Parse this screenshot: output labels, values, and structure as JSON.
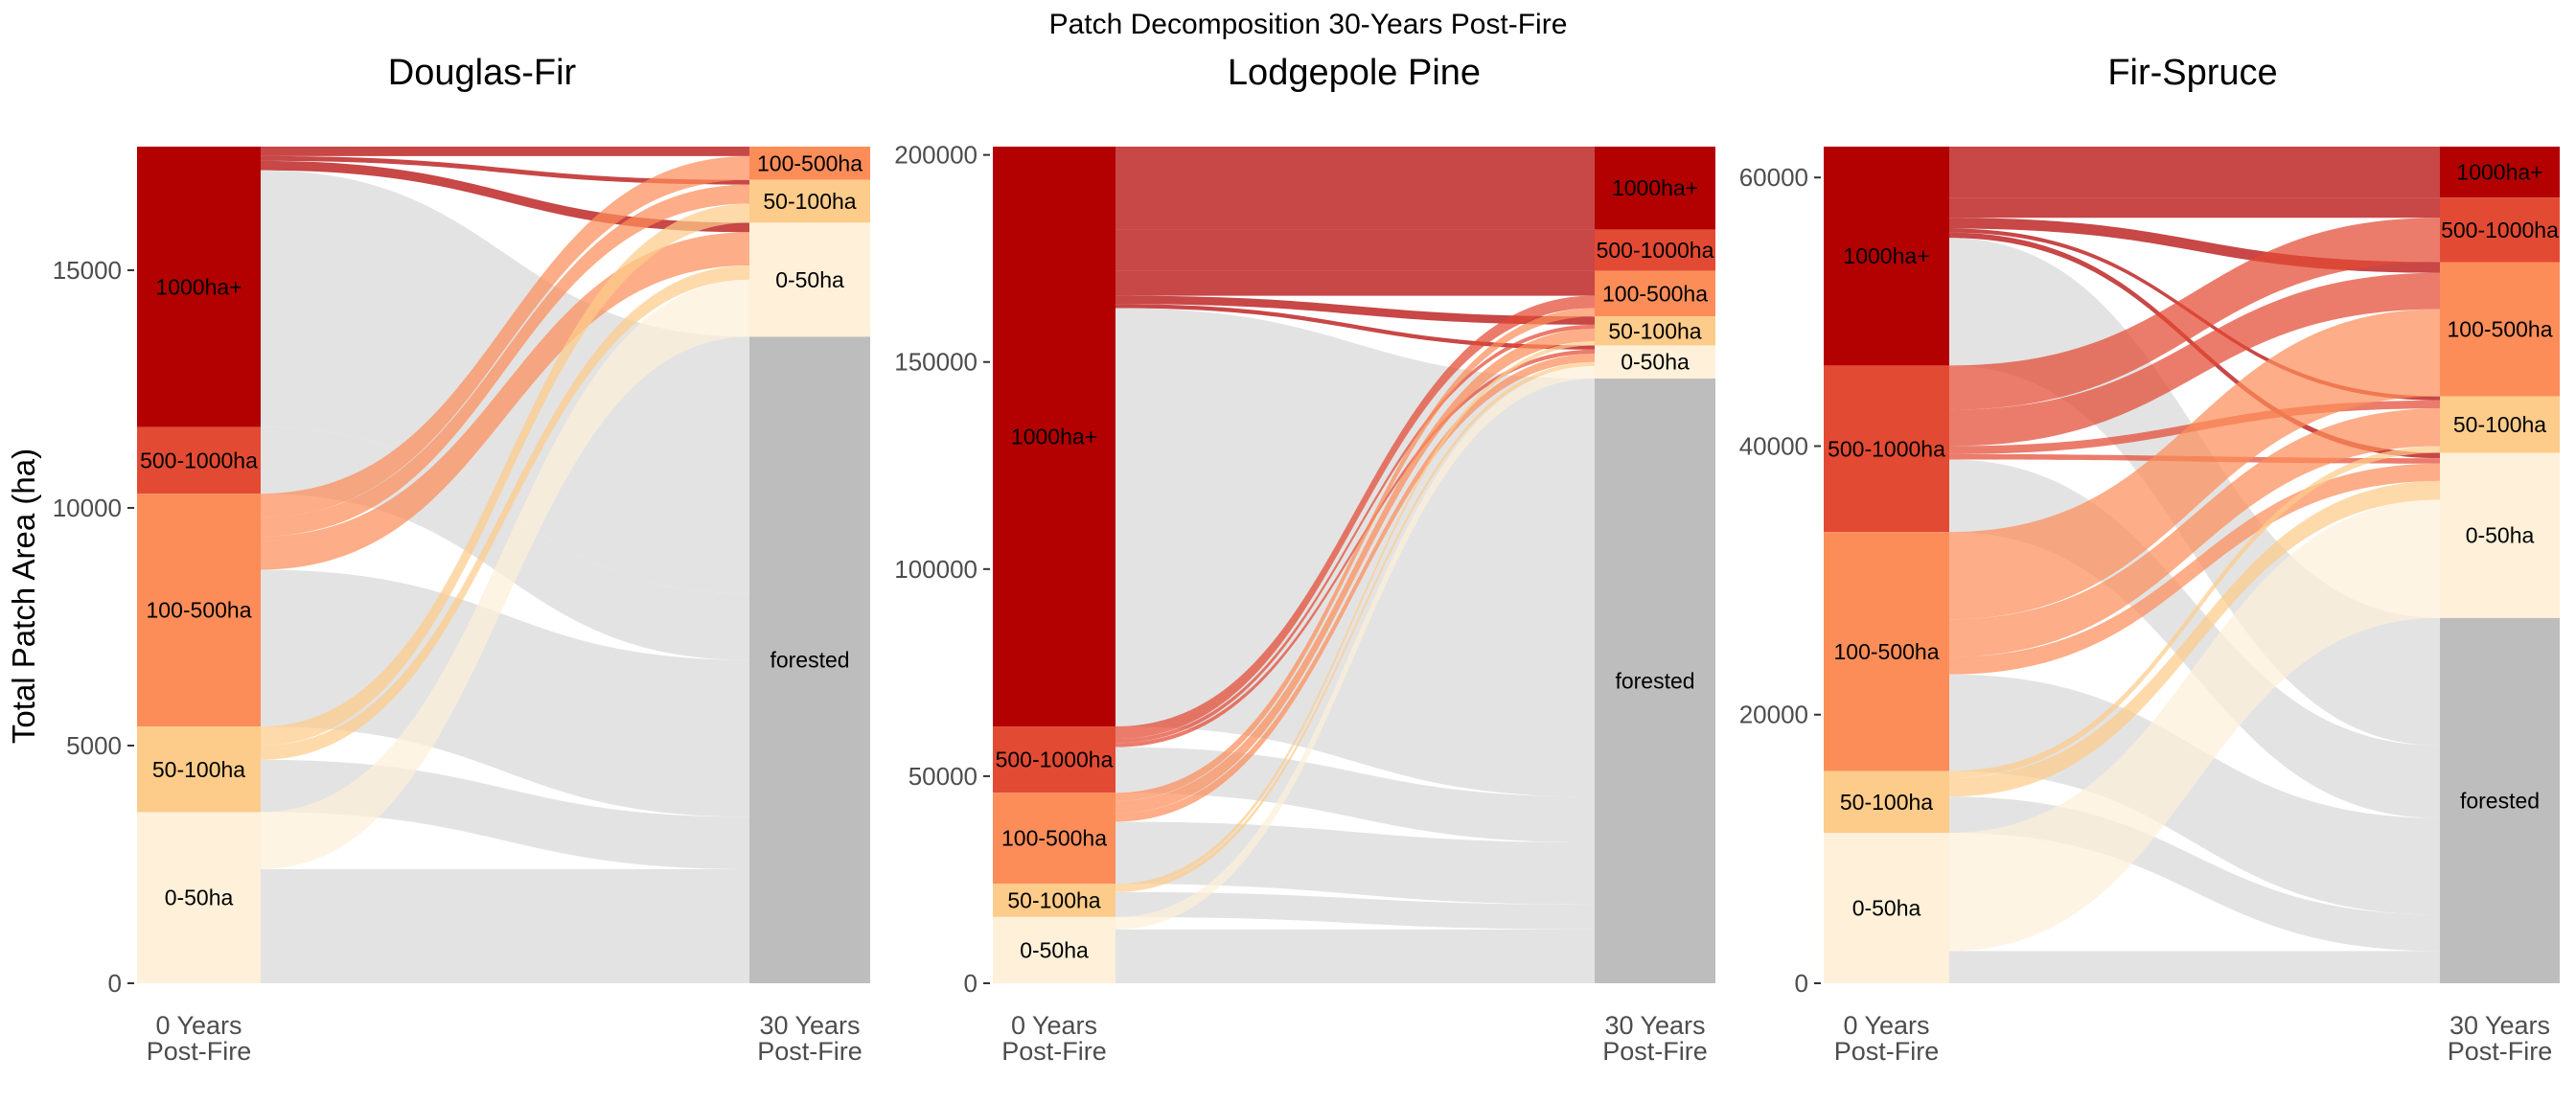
{
  "suptitle": "Patch Decomposition 30-Years Post-Fire",
  "ylabel": "Total Patch Area (ha)",
  "colors": {
    "1000ha+": "#b30000",
    "500-1000ha": "#e34a33",
    "100-500ha": "#fc8d59",
    "50-100ha": "#fdcc8a",
    "0-50ha": "#fef0d9",
    "forested": "#bdbdbd",
    "flow_to_forested": "#e3e3e3"
  },
  "chart_data": [
    {
      "type": "sankey",
      "title": "Douglas-Fir",
      "ylim": [
        0,
        17600
      ],
      "yticks": [
        0,
        5000,
        10000,
        15000
      ],
      "x_labels": [
        "0 Years\nPost-Fire",
        "30 Years\nPost-Fire"
      ],
      "left_nodes": [
        {
          "name": "1000ha+",
          "value": 5900
        },
        {
          "name": "500-1000ha",
          "value": 1400
        },
        {
          "name": "100-500ha",
          "value": 4900
        },
        {
          "name": "50-100ha",
          "value": 1800
        },
        {
          "name": "0-50ha",
          "value": 3600
        }
      ],
      "right_nodes": [
        {
          "name": "100-500ha",
          "value": 700
        },
        {
          "name": "50-100ha",
          "value": 900
        },
        {
          "name": "0-50ha",
          "value": 2400
        },
        {
          "name": "forested",
          "value": 13600
        }
      ],
      "flows": [
        {
          "from": "1000ha+",
          "to": "100-500ha",
          "value": 200
        },
        {
          "from": "1000ha+",
          "to": "50-100ha",
          "value": 100
        },
        {
          "from": "1000ha+",
          "to": "0-50ha",
          "value": 200
        },
        {
          "from": "1000ha+",
          "to": "forested",
          "value": 5400
        },
        {
          "from": "500-1000ha",
          "to": "forested",
          "value": 1400
        },
        {
          "from": "100-500ha",
          "to": "100-500ha",
          "value": 500
        },
        {
          "from": "100-500ha",
          "to": "50-100ha",
          "value": 400
        },
        {
          "from": "100-500ha",
          "to": "0-50ha",
          "value": 700
        },
        {
          "from": "100-500ha",
          "to": "forested",
          "value": 3300
        },
        {
          "from": "50-100ha",
          "to": "50-100ha",
          "value": 400
        },
        {
          "from": "50-100ha",
          "to": "0-50ha",
          "value": 300
        },
        {
          "from": "50-100ha",
          "to": "forested",
          "value": 1100
        },
        {
          "from": "0-50ha",
          "to": "0-50ha",
          "value": 1200
        },
        {
          "from": "0-50ha",
          "to": "forested",
          "value": 2400
        }
      ]
    },
    {
      "type": "sankey",
      "title": "Lodgepole Pine",
      "ylim": [
        0,
        202000
      ],
      "yticks": [
        0,
        50000,
        100000,
        150000,
        200000
      ],
      "x_labels": [
        "0 Years\nPost-Fire",
        "30 Years\nPost-Fire"
      ],
      "left_nodes": [
        {
          "name": "1000ha+",
          "value": 140000
        },
        {
          "name": "500-1000ha",
          "value": 16000
        },
        {
          "name": "100-500ha",
          "value": 22000
        },
        {
          "name": "50-100ha",
          "value": 8000
        },
        {
          "name": "0-50ha",
          "value": 16000
        }
      ],
      "right_nodes": [
        {
          "name": "1000ha+",
          "value": 20000
        },
        {
          "name": "500-1000ha",
          "value": 10000
        },
        {
          "name": "100-500ha",
          "value": 11000
        },
        {
          "name": "50-100ha",
          "value": 7000
        },
        {
          "name": "0-50ha",
          "value": 8000
        },
        {
          "name": "forested",
          "value": 146000
        }
      ],
      "flows": [
        {
          "from": "1000ha+",
          "to": "1000ha+",
          "value": 20000
        },
        {
          "from": "1000ha+",
          "to": "500-1000ha",
          "value": 10000
        },
        {
          "from": "1000ha+",
          "to": "100-500ha",
          "value": 6000
        },
        {
          "from": "1000ha+",
          "to": "50-100ha",
          "value": 2000
        },
        {
          "from": "1000ha+",
          "to": "0-50ha",
          "value": 1000
        },
        {
          "from": "1000ha+",
          "to": "forested",
          "value": 101000
        },
        {
          "from": "500-1000ha",
          "to": "100-500ha",
          "value": 3000
        },
        {
          "from": "500-1000ha",
          "to": "50-100ha",
          "value": 1000
        },
        {
          "from": "500-1000ha",
          "to": "0-50ha",
          "value": 1000
        },
        {
          "from": "500-1000ha",
          "to": "forested",
          "value": 11000
        },
        {
          "from": "100-500ha",
          "to": "100-500ha",
          "value": 2000
        },
        {
          "from": "100-500ha",
          "to": "50-100ha",
          "value": 3000
        },
        {
          "from": "100-500ha",
          "to": "0-50ha",
          "value": 2000
        },
        {
          "from": "100-500ha",
          "to": "forested",
          "value": 15000
        },
        {
          "from": "50-100ha",
          "to": "50-100ha",
          "value": 1000
        },
        {
          "from": "50-100ha",
          "to": "0-50ha",
          "value": 1000
        },
        {
          "from": "50-100ha",
          "to": "forested",
          "value": 6000
        },
        {
          "from": "0-50ha",
          "to": "0-50ha",
          "value": 3000
        },
        {
          "from": "0-50ha",
          "to": "forested",
          "value": 13000
        }
      ]
    },
    {
      "type": "sankey",
      "title": "Fir-Spruce",
      "ylim": [
        0,
        62300
      ],
      "yticks": [
        0,
        20000,
        40000,
        60000
      ],
      "x_labels": [
        "0 Years\nPost-Fire",
        "30 Years\nPost-Fire"
      ],
      "left_nodes": [
        {
          "name": "1000ha+",
          "value": 16300
        },
        {
          "name": "500-1000ha",
          "value": 12400
        },
        {
          "name": "100-500ha",
          "value": 17800
        },
        {
          "name": "50-100ha",
          "value": 4600
        },
        {
          "name": "0-50ha",
          "value": 11200
        }
      ],
      "right_nodes": [
        {
          "name": "1000ha+",
          "value": 3800
        },
        {
          "name": "500-1000ha",
          "value": 4800
        },
        {
          "name": "100-500ha",
          "value": 10000
        },
        {
          "name": "50-100ha",
          "value": 4200
        },
        {
          "name": "0-50ha",
          "value": 12300
        },
        {
          "name": "forested",
          "value": 27200
        }
      ],
      "flows": [
        {
          "from": "1000ha+",
          "to": "1000ha+",
          "value": 3800
        },
        {
          "from": "1000ha+",
          "to": "500-1000ha",
          "value": 1500
        },
        {
          "from": "1000ha+",
          "to": "100-500ha",
          "value": 800
        },
        {
          "from": "1000ha+",
          "to": "50-100ha",
          "value": 300
        },
        {
          "from": "1000ha+",
          "to": "0-50ha",
          "value": 400
        },
        {
          "from": "1000ha+",
          "to": "forested",
          "value": 9500
        },
        {
          "from": "500-1000ha",
          "to": "500-1000ha",
          "value": 3300
        },
        {
          "from": "500-1000ha",
          "to": "100-500ha",
          "value": 2700
        },
        {
          "from": "500-1000ha",
          "to": "50-100ha",
          "value": 600
        },
        {
          "from": "500-1000ha",
          "to": "0-50ha",
          "value": 400
        },
        {
          "from": "500-1000ha",
          "to": "forested",
          "value": 5400
        },
        {
          "from": "100-500ha",
          "to": "100-500ha",
          "value": 6500
        },
        {
          "from": "100-500ha",
          "to": "50-100ha",
          "value": 2800
        },
        {
          "from": "100-500ha",
          "to": "0-50ha",
          "value": 1300
        },
        {
          "from": "100-500ha",
          "to": "forested",
          "value": 7200
        },
        {
          "from": "50-100ha",
          "to": "50-100ha",
          "value": 500
        },
        {
          "from": "50-100ha",
          "to": "0-50ha",
          "value": 1400
        },
        {
          "from": "50-100ha",
          "to": "forested",
          "value": 2700
        },
        {
          "from": "0-50ha",
          "to": "0-50ha",
          "value": 8800
        },
        {
          "from": "0-50ha",
          "to": "forested",
          "value": 2400
        }
      ]
    }
  ]
}
